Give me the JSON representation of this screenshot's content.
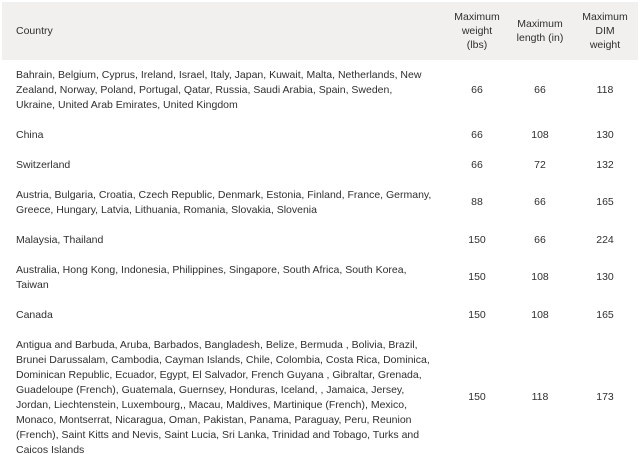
{
  "colors": {
    "header_bg": "#f1f0ee",
    "text": "#2f2f2f",
    "body_bg": "#ffffff"
  },
  "table": {
    "columns": {
      "country": "Country",
      "max_weight": "Maximum\nweight\n(lbs)",
      "max_length": "Maximum\nlength (in)",
      "max_dim": "Maximum\nDIM\nweight"
    },
    "rows": [
      {
        "countries": "Bahrain, Belgium, Cyprus, Ireland, Israel, Italy, Japan, Kuwait, Malta, Netherlands, New Zealand, Norway, Poland, Portugal, Qatar, Russia, Saudi Arabia, Spain, Sweden, Ukraine, United Arab Emirates, United Kingdom",
        "max_weight": "66",
        "max_length": "66",
        "max_dim": "118"
      },
      {
        "countries": "China",
        "max_weight": "66",
        "max_length": "108",
        "max_dim": "130"
      },
      {
        "countries": "Switzerland",
        "max_weight": "66",
        "max_length": "72",
        "max_dim": "132"
      },
      {
        "countries": "Austria, Bulgaria, Croatia, Czech Republic, Denmark, Estonia, Finland, France, Germany, Greece, Hungary, Latvia, Lithuania, Romania, Slovakia, Slovenia",
        "max_weight": "88",
        "max_length": "66",
        "max_dim": "165"
      },
      {
        "countries": "Malaysia, Thailand",
        "max_weight": "150",
        "max_length": "66",
        "max_dim": "224"
      },
      {
        "countries": "Australia, Hong Kong, Indonesia, Philippines, Singapore, South Africa, South Korea, Taiwan",
        "max_weight": "150",
        "max_length": "108",
        "max_dim": "130"
      },
      {
        "countries": "Canada",
        "max_weight": "150",
        "max_length": "108",
        "max_dim": "165"
      },
      {
        "countries": "Antigua and Barbuda, Aruba, Barbados, Bangladesh, Belize, Bermuda , Bolivia, Brazil, Brunei Darussalam, Cambodia, Cayman Islands, Chile, Colombia, Costa Rica, Dominica, Dominican Republic, Ecuador, Egypt, El Salvador, French Guyana , Gibraltar, Grenada, Guadeloupe (French), Guatemala, Guernsey, Honduras, Iceland, , Jamaica, Jersey, Jordan, Liechtenstein, Luxembourg,, Macau, Maldives, Martinique (French), Mexico, Monaco, Montserrat, Nicaragua, Oman, Pakistan, Panama, Paraguay, Peru, Reunion (French), Saint Kitts and Nevis, Saint Lucia, Sri Lanka, Trinidad and Tobago, Turks and Caicos Islands",
        "max_weight": "150",
        "max_length": "118",
        "max_dim": "173"
      }
    ]
  }
}
